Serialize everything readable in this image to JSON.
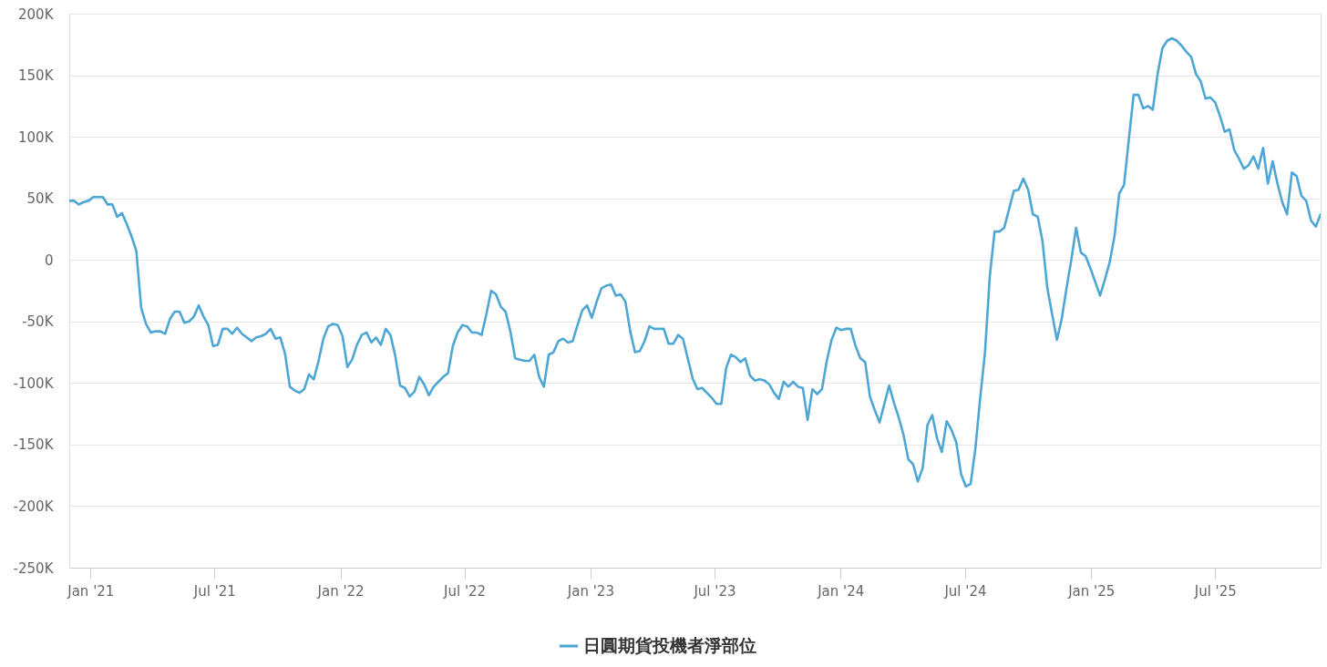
{
  "chart_data": {
    "type": "line",
    "x": [
      "2020-12-01",
      "2020-12-08",
      "2020-12-15",
      "2020-12-22",
      "2020-12-29",
      "2021-01-05",
      "2021-01-12",
      "2021-01-19",
      "2021-01-26",
      "2021-02-02",
      "2021-02-09",
      "2021-02-16",
      "2021-02-23",
      "2021-03-02",
      "2021-03-09",
      "2021-03-16",
      "2021-03-23",
      "2021-03-30",
      "2021-04-06",
      "2021-04-13",
      "2021-04-20",
      "2021-04-27",
      "2021-05-04",
      "2021-05-11",
      "2021-05-18",
      "2021-05-25",
      "2021-06-01",
      "2021-06-08",
      "2021-06-15",
      "2021-06-22",
      "2021-06-29",
      "2021-07-06",
      "2021-07-13",
      "2021-07-20",
      "2021-07-27",
      "2021-08-03",
      "2021-08-10",
      "2021-08-17",
      "2021-08-24",
      "2021-08-31",
      "2021-09-07",
      "2021-09-14",
      "2021-09-21",
      "2021-09-28",
      "2021-10-05",
      "2021-10-12",
      "2021-10-19",
      "2021-10-26",
      "2021-11-02",
      "2021-11-09",
      "2021-11-16",
      "2021-11-23",
      "2021-11-30",
      "2021-12-07",
      "2021-12-14",
      "2021-12-21",
      "2021-12-28",
      "2022-01-04",
      "2022-01-11",
      "2022-01-18",
      "2022-01-25",
      "2022-02-01",
      "2022-02-08",
      "2022-02-15",
      "2022-02-22",
      "2022-03-01",
      "2022-03-08",
      "2022-03-15",
      "2022-03-22",
      "2022-03-29",
      "2022-04-05",
      "2022-04-12",
      "2022-04-19",
      "2022-04-26",
      "2022-05-03",
      "2022-05-10",
      "2022-05-17",
      "2022-05-24",
      "2022-05-31",
      "2022-06-07",
      "2022-06-14",
      "2022-06-21",
      "2022-06-28",
      "2022-07-05",
      "2022-07-12",
      "2022-07-19",
      "2022-07-26",
      "2022-08-02",
      "2022-08-09",
      "2022-08-16",
      "2022-08-23",
      "2022-08-30",
      "2022-09-06",
      "2022-09-13",
      "2022-09-20",
      "2022-09-27",
      "2022-10-04",
      "2022-10-11",
      "2022-10-18",
      "2022-10-25",
      "2022-11-01",
      "2022-11-08",
      "2022-11-15",
      "2022-11-22",
      "2022-11-29",
      "2022-12-06",
      "2022-12-13",
      "2022-12-20",
      "2022-12-27",
      "2023-01-03",
      "2023-01-10",
      "2023-01-17",
      "2023-01-24",
      "2023-01-31",
      "2023-02-07",
      "2023-02-14",
      "2023-02-21",
      "2023-02-28",
      "2023-03-07",
      "2023-03-14",
      "2023-03-21",
      "2023-03-28",
      "2023-04-04",
      "2023-04-11",
      "2023-04-18",
      "2023-04-25",
      "2023-05-02",
      "2023-05-09",
      "2023-05-16",
      "2023-05-23",
      "2023-05-30",
      "2023-06-06",
      "2023-06-13",
      "2023-06-20",
      "2023-06-27",
      "2023-07-04",
      "2023-07-11",
      "2023-07-18",
      "2023-07-25",
      "2023-08-01",
      "2023-08-08",
      "2023-08-15",
      "2023-08-22",
      "2023-08-29",
      "2023-09-05",
      "2023-09-12",
      "2023-09-19",
      "2023-09-26",
      "2023-10-03",
      "2023-10-10",
      "2023-10-17",
      "2023-10-24",
      "2023-10-31",
      "2023-11-07",
      "2023-11-14",
      "2023-11-21",
      "2023-11-28",
      "2023-12-05",
      "2023-12-12",
      "2023-12-19",
      "2023-12-26",
      "2024-01-02",
      "2024-01-09",
      "2024-01-16",
      "2024-01-23",
      "2024-01-30",
      "2024-02-06",
      "2024-02-13",
      "2024-02-20",
      "2024-02-27",
      "2024-03-05",
      "2024-03-12",
      "2024-03-19",
      "2024-03-26",
      "2024-04-02",
      "2024-04-09",
      "2024-04-16",
      "2024-04-23",
      "2024-04-30",
      "2024-05-07",
      "2024-05-14",
      "2024-05-21",
      "2024-05-28",
      "2024-06-04",
      "2024-06-11",
      "2024-06-18",
      "2024-06-25",
      "2024-07-02",
      "2024-07-09",
      "2024-07-16",
      "2024-07-23",
      "2024-07-30",
      "2024-08-06",
      "2024-08-13",
      "2024-08-20",
      "2024-08-27",
      "2024-09-03",
      "2024-09-10",
      "2024-09-17",
      "2024-09-24",
      "2024-10-01",
      "2024-10-08",
      "2024-10-15",
      "2024-10-22",
      "2024-10-29",
      "2024-11-05",
      "2024-11-12",
      "2024-11-19",
      "2024-11-26",
      "2024-12-03",
      "2024-12-10",
      "2024-12-17",
      "2024-12-24",
      "2024-12-31",
      "2025-01-07",
      "2025-01-14",
      "2025-01-21",
      "2025-01-28",
      "2025-02-04",
      "2025-02-11",
      "2025-02-18",
      "2025-02-25",
      "2025-03-04",
      "2025-03-11",
      "2025-03-18",
      "2025-03-25",
      "2025-04-01",
      "2025-04-08",
      "2025-04-15",
      "2025-04-22",
      "2025-04-29",
      "2025-05-06",
      "2025-05-13",
      "2025-05-20",
      "2025-05-27",
      "2025-06-03",
      "2025-06-10",
      "2025-06-17",
      "2025-06-24",
      "2025-07-01",
      "2025-07-08",
      "2025-07-15",
      "2025-07-22",
      "2025-07-29",
      "2025-08-05",
      "2025-08-12",
      "2025-08-19",
      "2025-08-26",
      "2025-09-02",
      "2025-09-09",
      "2025-09-16",
      "2025-09-23",
      "2025-09-30",
      "2025-10-07",
      "2025-10-14",
      "2025-10-21",
      "2025-10-28",
      "2025-11-04",
      "2025-11-11",
      "2025-11-18",
      "2025-11-25",
      "2025-12-02"
    ],
    "series": [
      {
        "name": "日圓期貨投機者淨部位",
        "color": "#4ea6d4",
        "values": [
          48000,
          48000,
          45000,
          47000,
          48000,
          51000,
          51000,
          51000,
          45000,
          45000,
          35000,
          38000,
          29000,
          19000,
          7000,
          -39000,
          -52000,
          -59000,
          -58000,
          -58000,
          -60000,
          -48000,
          -42000,
          -42000,
          -51000,
          -50000,
          -46000,
          -37000,
          -46000,
          -53000,
          -70000,
          -69000,
          -56000,
          -56000,
          -60000,
          -55000,
          -60000,
          -63000,
          -66000,
          -63000,
          -62000,
          -60000,
          -56000,
          -64000,
          -63000,
          -76000,
          -103000,
          -106000,
          -108000,
          -105000,
          -93000,
          -97000,
          -82000,
          -64000,
          -54000,
          -52000,
          -53000,
          -62000,
          -87000,
          -81000,
          -69000,
          -61000,
          -59000,
          -67000,
          -63000,
          -69000,
          -56000,
          -61000,
          -78000,
          -102000,
          -104000,
          -111000,
          -107000,
          -95000,
          -101000,
          -110000,
          -103000,
          -99000,
          -95000,
          -92000,
          -70000,
          -59000,
          -53000,
          -54000,
          -59000,
          -59000,
          -61000,
          -44000,
          -25000,
          -28000,
          -38000,
          -42000,
          -58000,
          -80000,
          -81000,
          -82000,
          -82000,
          -77000,
          -95000,
          -103000,
          -77000,
          -75000,
          -66000,
          -64000,
          -67000,
          -66000,
          -53000,
          -41000,
          -37000,
          -47000,
          -34000,
          -23000,
          -21000,
          -20000,
          -29000,
          -28000,
          -34000,
          -58000,
          -75000,
          -74000,
          -66000,
          -54000,
          -56000,
          -56000,
          -56000,
          -68000,
          -68000,
          -61000,
          -64000,
          -80000,
          -96000,
          -105000,
          -104000,
          -108000,
          -112000,
          -117000,
          -117000,
          -88000,
          -77000,
          -79000,
          -83000,
          -80000,
          -94000,
          -98000,
          -97000,
          -98000,
          -101000,
          -108000,
          -113000,
          -99000,
          -103000,
          -99000,
          -103000,
          -104000,
          -130000,
          -105000,
          -109000,
          -105000,
          -82000,
          -65000,
          -55000,
          -57000,
          -56000,
          -56000,
          -70000,
          -80000,
          -83000,
          -111000,
          -122000,
          -132000,
          -117000,
          -102000,
          -116000,
          -128000,
          -142000,
          -162000,
          -166000,
          -180000,
          -169000,
          -134000,
          -126000,
          -145000,
          -156000,
          -131000,
          -138000,
          -148000,
          -174000,
          -184000,
          -182000,
          -153000,
          -112000,
          -75000,
          -13000,
          23000,
          23000,
          26000,
          41000,
          56000,
          57000,
          66000,
          57000,
          37000,
          35000,
          15000,
          -23000,
          -44000,
          -65000,
          -48000,
          -23000,
          0,
          26000,
          6000,
          3000,
          -7000,
          -18000,
          -29000,
          -16000,
          -2000,
          19000,
          54000,
          61000,
          98000,
          134000,
          134000,
          123000,
          125000,
          122000,
          151000,
          172000,
          178000,
          180000,
          178000,
          174000,
          169000,
          165000,
          151000,
          145000,
          131000,
          132000,
          128000,
          117000,
          104000,
          106000,
          89000,
          82000,
          74000,
          77000,
          84000,
          74000,
          91000,
          62000,
          80000,
          62000,
          47000,
          37000,
          71000,
          68000,
          52000,
          48000,
          32000,
          27000,
          37000
        ]
      }
    ],
    "xlim": [
      "2020-12-01",
      "2025-12-02"
    ],
    "xticks": [
      {
        "value": "2021-01-01",
        "label": "Jan '21"
      },
      {
        "value": "2021-07-01",
        "label": "Jul '21"
      },
      {
        "value": "2022-01-01",
        "label": "Jan '22"
      },
      {
        "value": "2022-07-01",
        "label": "Jul '22"
      },
      {
        "value": "2023-01-01",
        "label": "Jan '23"
      },
      {
        "value": "2023-07-01",
        "label": "Jul '23"
      },
      {
        "value": "2024-01-01",
        "label": "Jan '24"
      },
      {
        "value": "2024-07-01",
        "label": "Jul '24"
      },
      {
        "value": "2025-01-01",
        "label": "Jan '25"
      },
      {
        "value": "2025-07-01",
        "label": "Jul '25"
      }
    ],
    "ylim": [
      -250000,
      200000
    ],
    "yticks": [
      {
        "value": -250000,
        "label": "-250K"
      },
      {
        "value": -200000,
        "label": "-200K"
      },
      {
        "value": -150000,
        "label": "-150K"
      },
      {
        "value": -100000,
        "label": "-100K"
      },
      {
        "value": -50000,
        "label": "-50K"
      },
      0,
      {
        "value": 50000,
        "label": "50K"
      },
      {
        "value": 100000,
        "label": "100K"
      },
      {
        "value": 150000,
        "label": "150K"
      },
      {
        "value": 200000,
        "label": "200K"
      }
    ],
    "grid": "y",
    "legend": "bottom"
  }
}
